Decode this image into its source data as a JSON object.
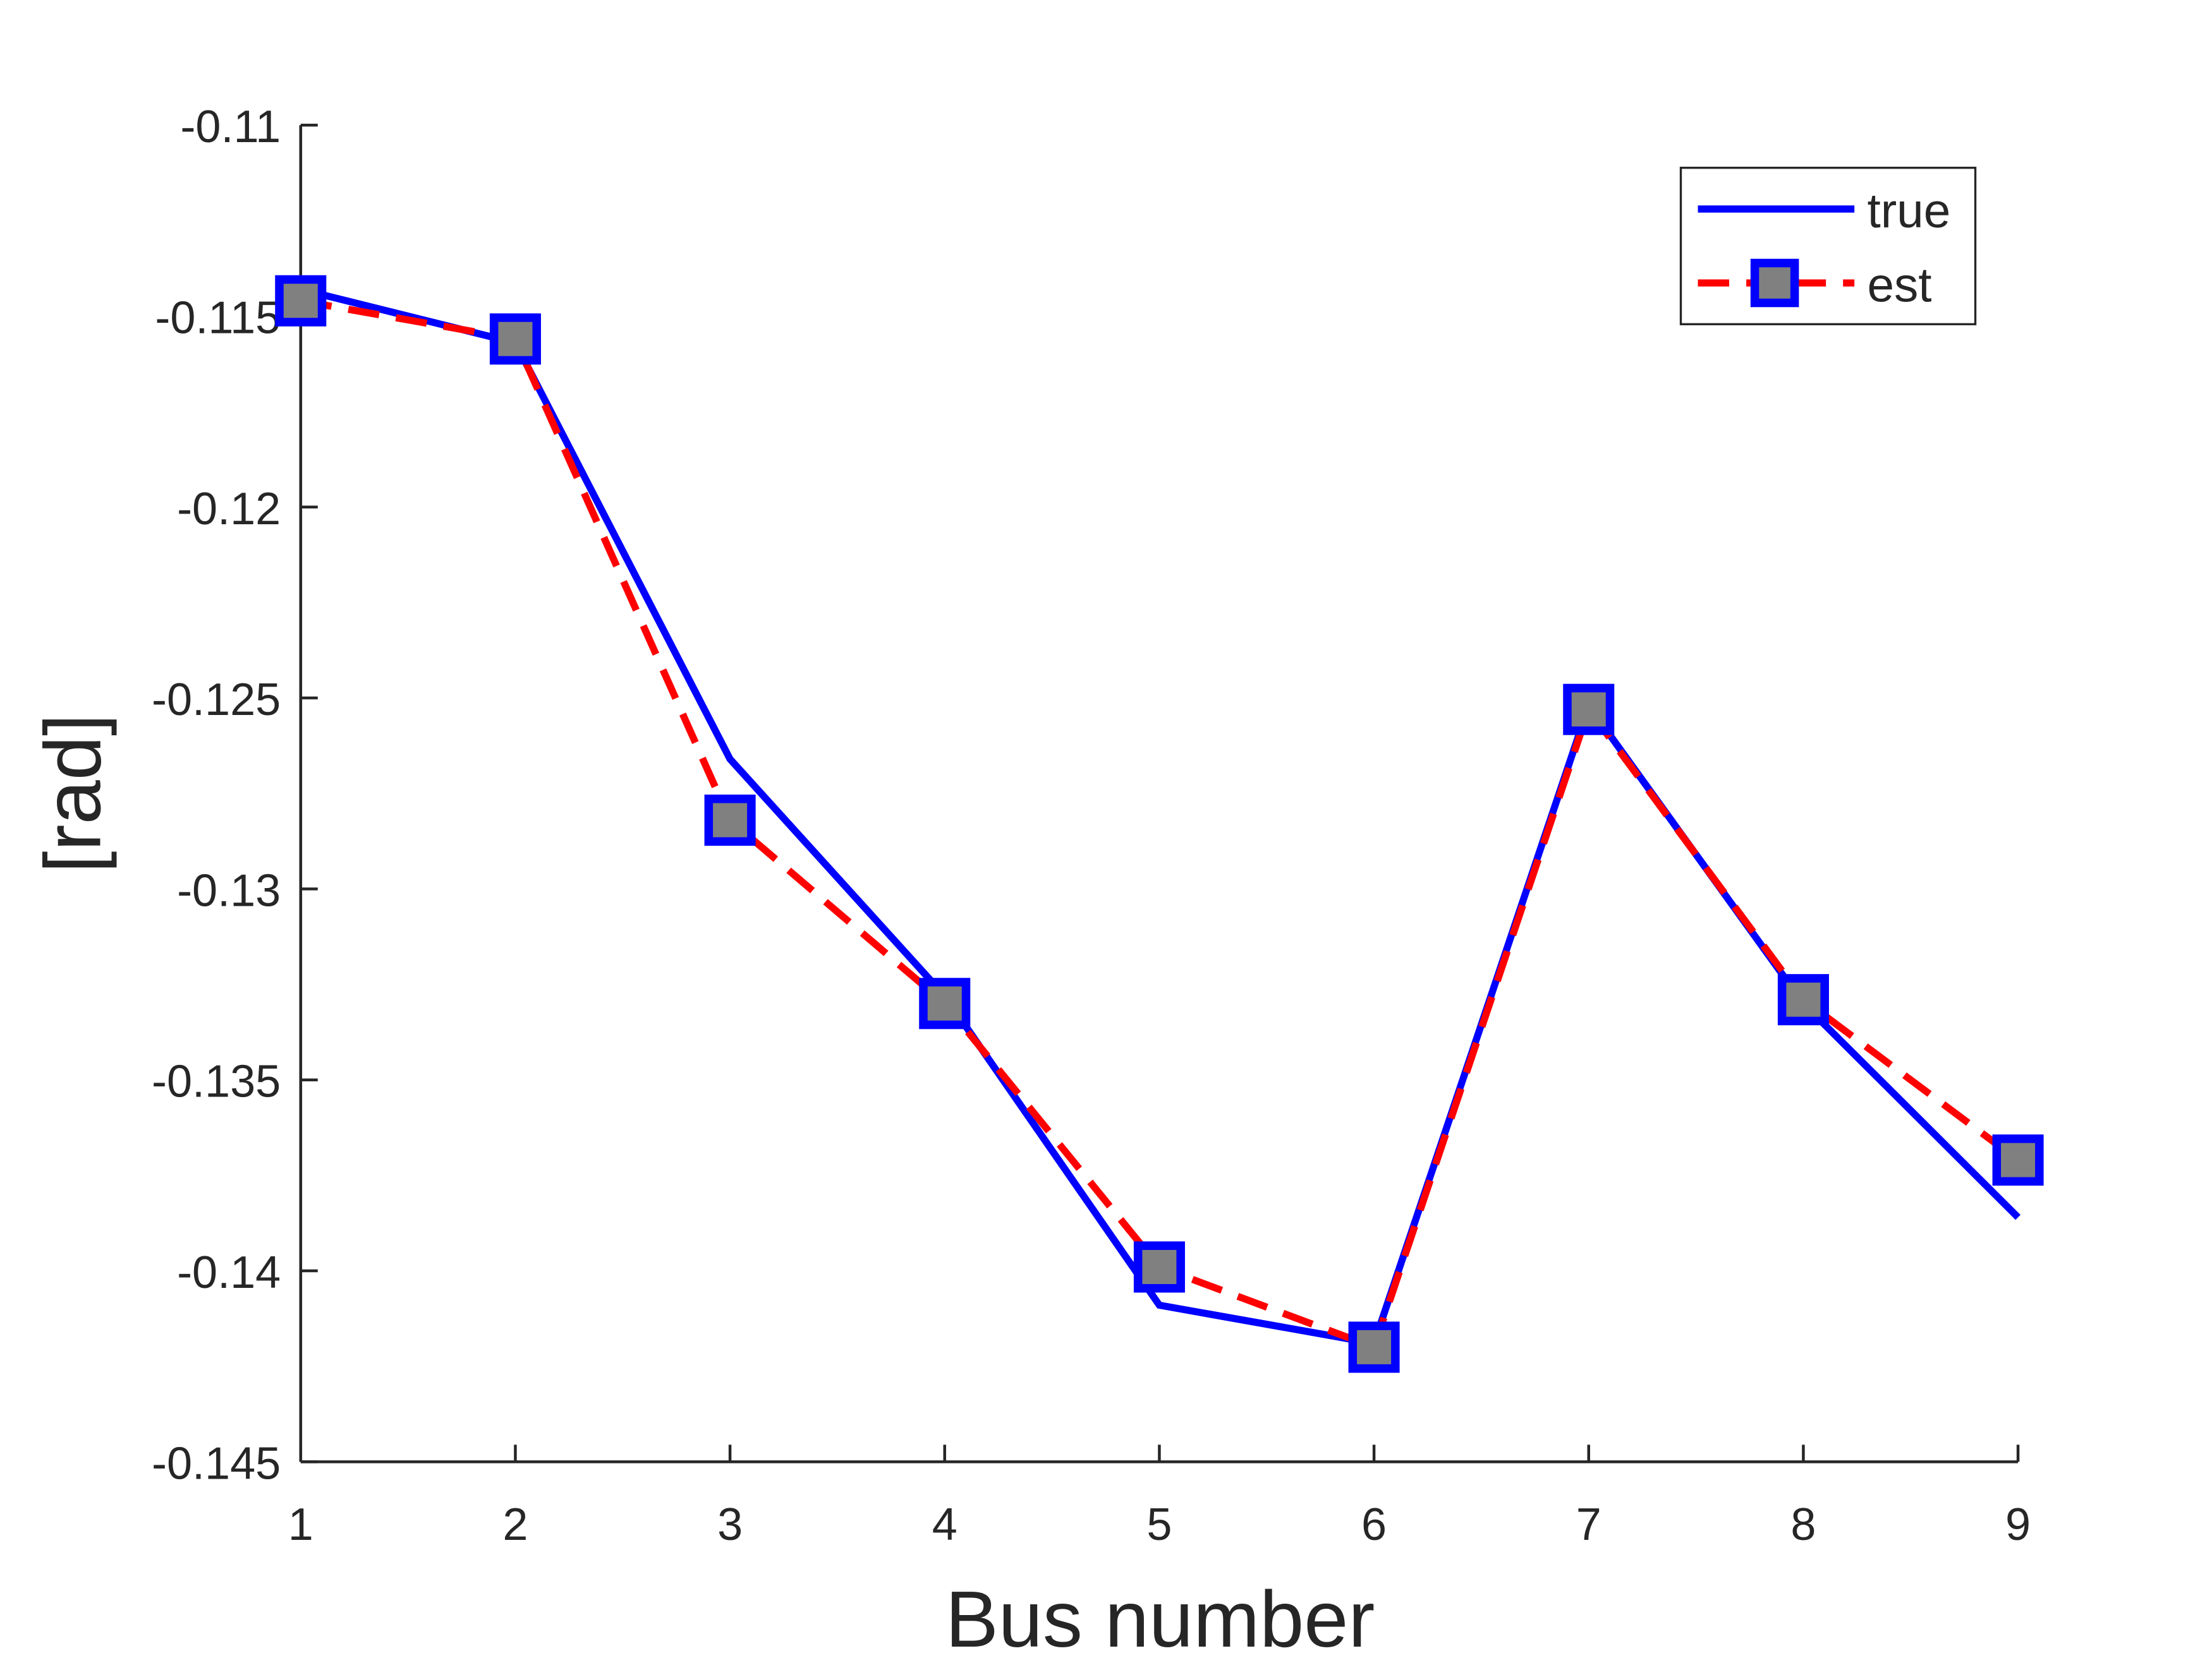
{
  "chart_data": {
    "type": "line",
    "title": "",
    "xlabel": "Bus number",
    "ylabel": "[rad]",
    "xlim": [
      1,
      9
    ],
    "ylim": [
      -0.145,
      -0.11
    ],
    "xticks": [
      1,
      2,
      3,
      4,
      5,
      6,
      7,
      8,
      9
    ],
    "xtick_labels": [
      "1",
      "2",
      "3",
      "4",
      "5",
      "6",
      "7",
      "8",
      "9"
    ],
    "yticks": [
      -0.145,
      -0.14,
      -0.135,
      -0.13,
      -0.125,
      -0.12,
      -0.115,
      -0.11
    ],
    "ytick_labels": [
      "-0.145",
      "-0.14",
      "-0.135",
      "-0.13",
      "-0.125",
      "-0.12",
      "-0.115",
      "-0.11"
    ],
    "grid": false,
    "legend_position": "top-right",
    "x": [
      1,
      2,
      3,
      4,
      5,
      6,
      7,
      8,
      9
    ],
    "series": [
      {
        "name": "true",
        "values": [
          -0.1143,
          -0.1157,
          -0.1266,
          -0.1328,
          -0.1409,
          -0.1419,
          -0.1252,
          -0.133,
          -0.1386
        ],
        "color": "#0000ff",
        "style": "solid",
        "marker": "none"
      },
      {
        "name": "est",
        "values": [
          -0.1146,
          -0.1156,
          -0.1282,
          -0.133,
          -0.1399,
          -0.142,
          -0.1253,
          -0.1329,
          -0.1371
        ],
        "color": "#ff0000",
        "style": "dashed",
        "marker": "square",
        "marker_edge_color": "#0000ff",
        "marker_face_color": "#808080"
      }
    ]
  }
}
